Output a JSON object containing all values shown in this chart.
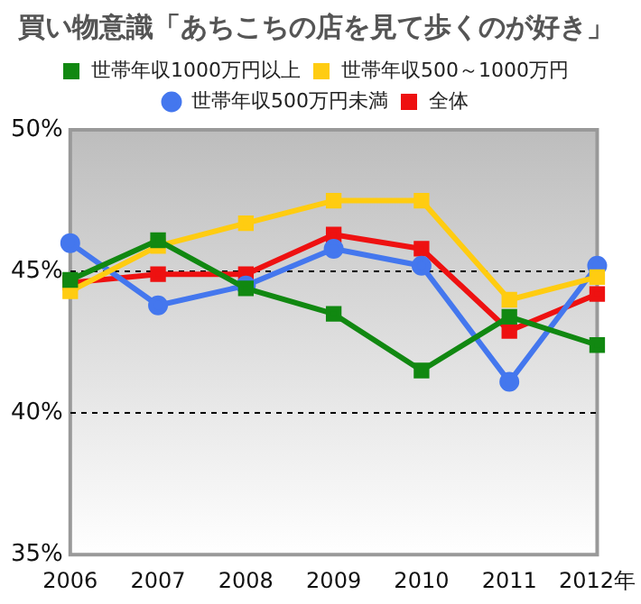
{
  "chart_data": {
    "type": "line",
    "title": "買い物意識「あちこちの店を見て歩くのが好き」",
    "categories": [
      "2006",
      "2007",
      "2008",
      "2009",
      "2010",
      "2011",
      "2012年"
    ],
    "series": [
      {
        "name": "全体",
        "color": "#ee1111",
        "marker": "square",
        "values": [
          44.6,
          44.9,
          44.9,
          46.3,
          45.8,
          42.9,
          44.2
        ]
      },
      {
        "name": "世帯年収500万円未満",
        "color": "#4477ee",
        "marker": "circle",
        "values": [
          46.0,
          43.8,
          44.5,
          45.8,
          45.2,
          41.1,
          45.2
        ]
      },
      {
        "name": "世帯年収500～1000万円",
        "color": "#ffcc11",
        "marker": "square",
        "values": [
          44.3,
          45.9,
          46.7,
          47.5,
          47.5,
          44.0,
          44.8
        ]
      },
      {
        "name": "世帯年収1000万円以上",
        "color": "#118811",
        "marker": "square",
        "values": [
          44.7,
          46.1,
          44.4,
          43.5,
          41.5,
          43.4,
          42.4
        ]
      }
    ],
    "ylim": [
      35,
      50
    ],
    "yticks": [
      {
        "value": 35,
        "label": "35%"
      },
      {
        "value": 40,
        "label": "40%"
      },
      {
        "value": 45,
        "label": "45%"
      },
      {
        "value": 50,
        "label": "50%"
      }
    ],
    "grid": "y",
    "legend": "top"
  }
}
